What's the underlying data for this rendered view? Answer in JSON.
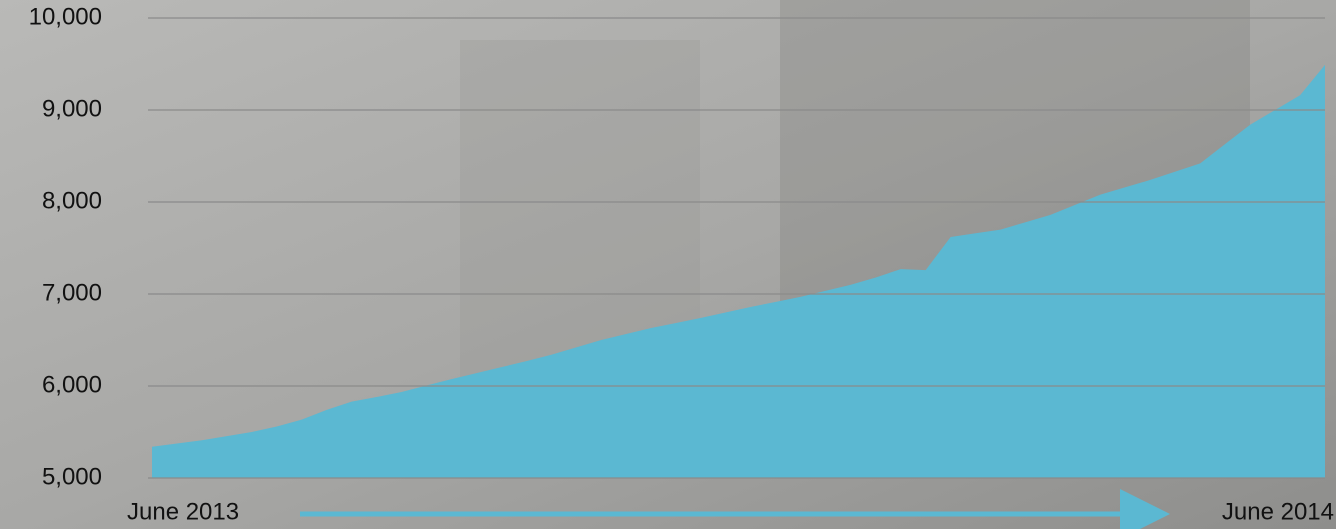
{
  "chart_data": {
    "type": "area",
    "categories": [
      "June 2013",
      null,
      null,
      null,
      null,
      null,
      null,
      null,
      null,
      null,
      null,
      null,
      null,
      null,
      null,
      null,
      null,
      null,
      null,
      null,
      null,
      null,
      null,
      null,
      null,
      null,
      null,
      null,
      null,
      null,
      null,
      null,
      null,
      null,
      null,
      null,
      null,
      null,
      null,
      null,
      null,
      null,
      null,
      null,
      null,
      null,
      null,
      "June 2014"
    ],
    "values": [
      5340,
      5375,
      5410,
      5455,
      5500,
      5560,
      5635,
      5740,
      5830,
      5880,
      5935,
      6005,
      6075,
      6140,
      6205,
      6270,
      6340,
      6420,
      6500,
      6565,
      6630,
      6685,
      6740,
      6800,
      6860,
      6915,
      6970,
      7035,
      7100,
      7180,
      7270,
      7260,
      7620,
      7660,
      7700,
      7780,
      7860,
      7970,
      8080,
      8160,
      8240,
      8330,
      8420,
      8630,
      8840,
      9000,
      9160,
      9490
    ],
    "color": "#5bb8d2",
    "ylim": [
      5000,
      10000
    ],
    "yticks": [
      {
        "value": 5000,
        "label": "5,000"
      },
      {
        "value": 6000,
        "label": "6,000"
      },
      {
        "value": 7000,
        "label": "7,000"
      },
      {
        "value": 8000,
        "label": "8,000"
      },
      {
        "value": 9000,
        "label": "9,000"
      },
      {
        "value": 10000,
        "label": "10,000"
      }
    ],
    "grid": true
  }
}
